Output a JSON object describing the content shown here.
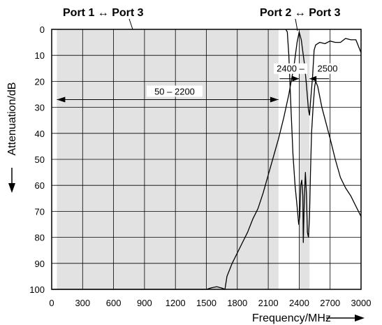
{
  "chart_data": {
    "type": "line",
    "title_left": "Port 1 ↔ Port 3",
    "title_right": "Port 2 ↔ Port 3",
    "xlabel": "Frequency/MHz",
    "ylabel": "Attenuation/dB",
    "xlim": [
      0,
      3000
    ],
    "ylim": [
      0,
      100
    ],
    "y_inverted": true,
    "grid": true,
    "x_ticks": [
      0,
      300,
      600,
      900,
      1200,
      1500,
      1800,
      2100,
      2400,
      2700,
      3000
    ],
    "y_ticks": [
      0,
      10,
      20,
      30,
      40,
      50,
      60,
      70,
      80,
      90,
      100
    ],
    "x_tick_labels": [
      "0",
      "300",
      "600",
      "900",
      "1200",
      "1500",
      "1800",
      "2100",
      "2400",
      "2700",
      "3000"
    ],
    "y_tick_labels": [
      "0",
      "10",
      "20",
      "30",
      "40",
      "50",
      "60",
      "70",
      "80",
      "90",
      "100"
    ],
    "shaded_bands": [
      {
        "x0": 50,
        "x1": 2200
      },
      {
        "x0": 2400,
        "x1": 2500
      }
    ],
    "annotations": [
      {
        "label": "50 – 2200",
        "x0": 50,
        "x1": 2200,
        "y": 27
      },
      {
        "label": "2400 –",
        "label2": "2500",
        "x0": 2400,
        "x1": 2500,
        "y": 19
      }
    ],
    "series": [
      {
        "points": [
          [
            0,
            100
          ],
          [
            1500,
            100
          ],
          [
            1550,
            99.4
          ],
          [
            1600,
            99
          ],
          [
            1650,
            99.5
          ],
          [
            1680,
            100
          ],
          [
            1700,
            95
          ],
          [
            1750,
            90
          ],
          [
            1800,
            86
          ],
          [
            1850,
            82
          ],
          [
            1900,
            78
          ],
          [
            1950,
            73
          ],
          [
            2000,
            69
          ],
          [
            2050,
            63
          ],
          [
            2100,
            56
          ],
          [
            2150,
            49
          ],
          [
            2200,
            42
          ],
          [
            2250,
            34
          ],
          [
            2300,
            25
          ],
          [
            2350,
            14
          ],
          [
            2380,
            5
          ],
          [
            2400,
            1
          ],
          [
            2420,
            4
          ],
          [
            2450,
            13
          ],
          [
            2470,
            21
          ],
          [
            2490,
            31
          ],
          [
            2500,
            33
          ],
          [
            2510,
            28
          ],
          [
            2530,
            18
          ],
          [
            2545,
            8
          ],
          [
            2560,
            6
          ],
          [
            2600,
            5
          ],
          [
            2650,
            5.5
          ],
          [
            2700,
            4.5
          ],
          [
            2750,
            5
          ],
          [
            2800,
            5
          ],
          [
            2850,
            3.5
          ],
          [
            2900,
            4
          ],
          [
            2950,
            4
          ],
          [
            3000,
            9
          ]
        ]
      },
      {
        "points": [
          [
            2270,
            0
          ],
          [
            2285,
            1
          ],
          [
            2300,
            10
          ],
          [
            2320,
            30
          ],
          [
            2340,
            48
          ],
          [
            2360,
            60
          ],
          [
            2380,
            68
          ],
          [
            2395,
            75
          ],
          [
            2405,
            72
          ],
          [
            2415,
            60
          ],
          [
            2425,
            58
          ],
          [
            2435,
            64
          ],
          [
            2440,
            82
          ],
          [
            2450,
            65
          ],
          [
            2460,
            55
          ],
          [
            2470,
            63
          ],
          [
            2480,
            78
          ],
          [
            2490,
            80
          ],
          [
            2500,
            72
          ],
          [
            2510,
            55
          ],
          [
            2520,
            40
          ],
          [
            2535,
            30
          ],
          [
            2550,
            22
          ],
          [
            2560,
            20
          ],
          [
            2580,
            22
          ],
          [
            2620,
            30
          ],
          [
            2700,
            42
          ],
          [
            2750,
            50
          ],
          [
            2800,
            57
          ],
          [
            2850,
            61
          ],
          [
            2900,
            64
          ],
          [
            2950,
            68
          ],
          [
            3000,
            72
          ]
        ]
      }
    ]
  }
}
